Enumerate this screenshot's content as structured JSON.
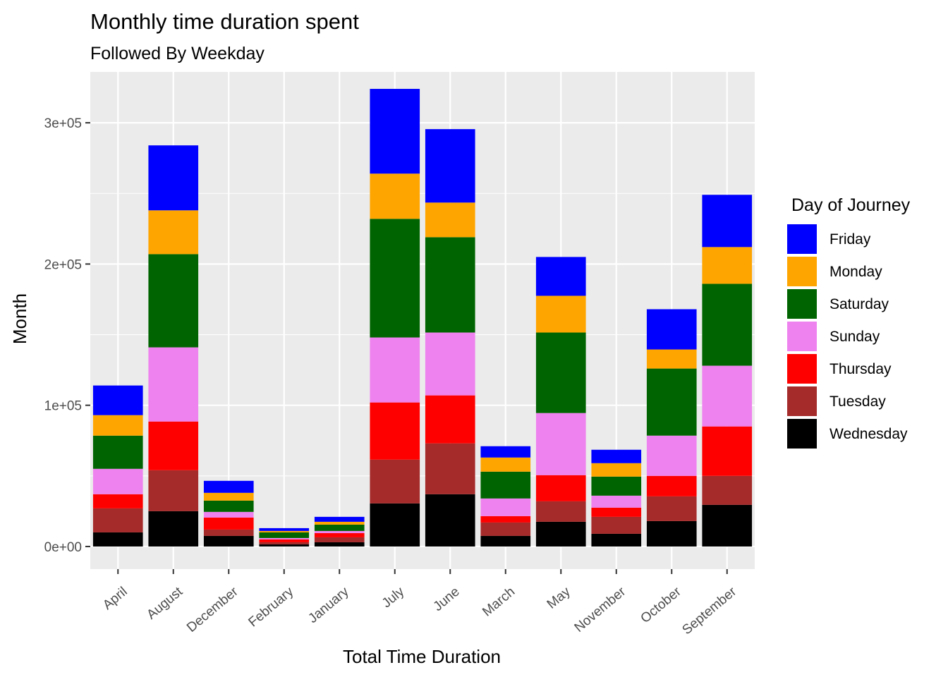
{
  "chart_data": {
    "type": "bar",
    "stacked": true,
    "title": "Monthly time duration spent",
    "subtitle": "Followed By Weekday",
    "xlabel": "Total Time Duration",
    "ylabel": "Month",
    "ylim": [
      -16000,
      336000
    ],
    "yticks": [
      0,
      100000,
      200000,
      300000
    ],
    "ytick_labels": [
      "0e+00",
      "1e+05",
      "2e+05",
      "3e+05"
    ],
    "grid": true,
    "legend": {
      "title": "Day of Journey",
      "placement": "right"
    },
    "categories": [
      "April",
      "August",
      "December",
      "February",
      "January",
      "July",
      "June",
      "March",
      "May",
      "November",
      "October",
      "September"
    ],
    "series": [
      {
        "name": "Wednesday",
        "color": "#000000",
        "values": [
          10000,
          25000,
          7500,
          1500,
          3000,
          30500,
          37000,
          7500,
          17500,
          9000,
          18000,
          29500
        ]
      },
      {
        "name": "Tuesday",
        "color": "#a52a2a",
        "values": [
          17000,
          29000,
          4500,
          1500,
          3500,
          31000,
          36000,
          9500,
          14500,
          12000,
          17500,
          20500
        ]
      },
      {
        "name": "Thursday",
        "color": "#ff0000",
        "values": [
          10000,
          34500,
          8500,
          2000,
          3000,
          40500,
          34000,
          4500,
          18500,
          6500,
          14500,
          35000
        ]
      },
      {
        "name": "Sunday",
        "color": "#ee82ee",
        "values": [
          18000,
          52500,
          4000,
          1000,
          1500,
          46000,
          44500,
          12500,
          44000,
          8500,
          28500,
          43000
        ]
      },
      {
        "name": "Saturday",
        "color": "#006400",
        "values": [
          23500,
          66000,
          8000,
          4000,
          4500,
          84000,
          67500,
          19000,
          57000,
          13500,
          47500,
          58000
        ]
      },
      {
        "name": "Monday",
        "color": "#ffa500",
        "values": [
          14500,
          31000,
          5500,
          1000,
          2000,
          32000,
          24500,
          10000,
          26000,
          9500,
          13500,
          26000
        ]
      },
      {
        "name": "Friday",
        "color": "#0000ff",
        "values": [
          21000,
          46000,
          8500,
          2000,
          3500,
          60000,
          52000,
          8000,
          27500,
          9500,
          28500,
          37000
        ]
      }
    ],
    "legend_order": [
      "Friday",
      "Monday",
      "Saturday",
      "Sunday",
      "Thursday",
      "Tuesday",
      "Wednesday"
    ],
    "panel_color": "#ebebeb",
    "grid_color": "#ffffff"
  }
}
